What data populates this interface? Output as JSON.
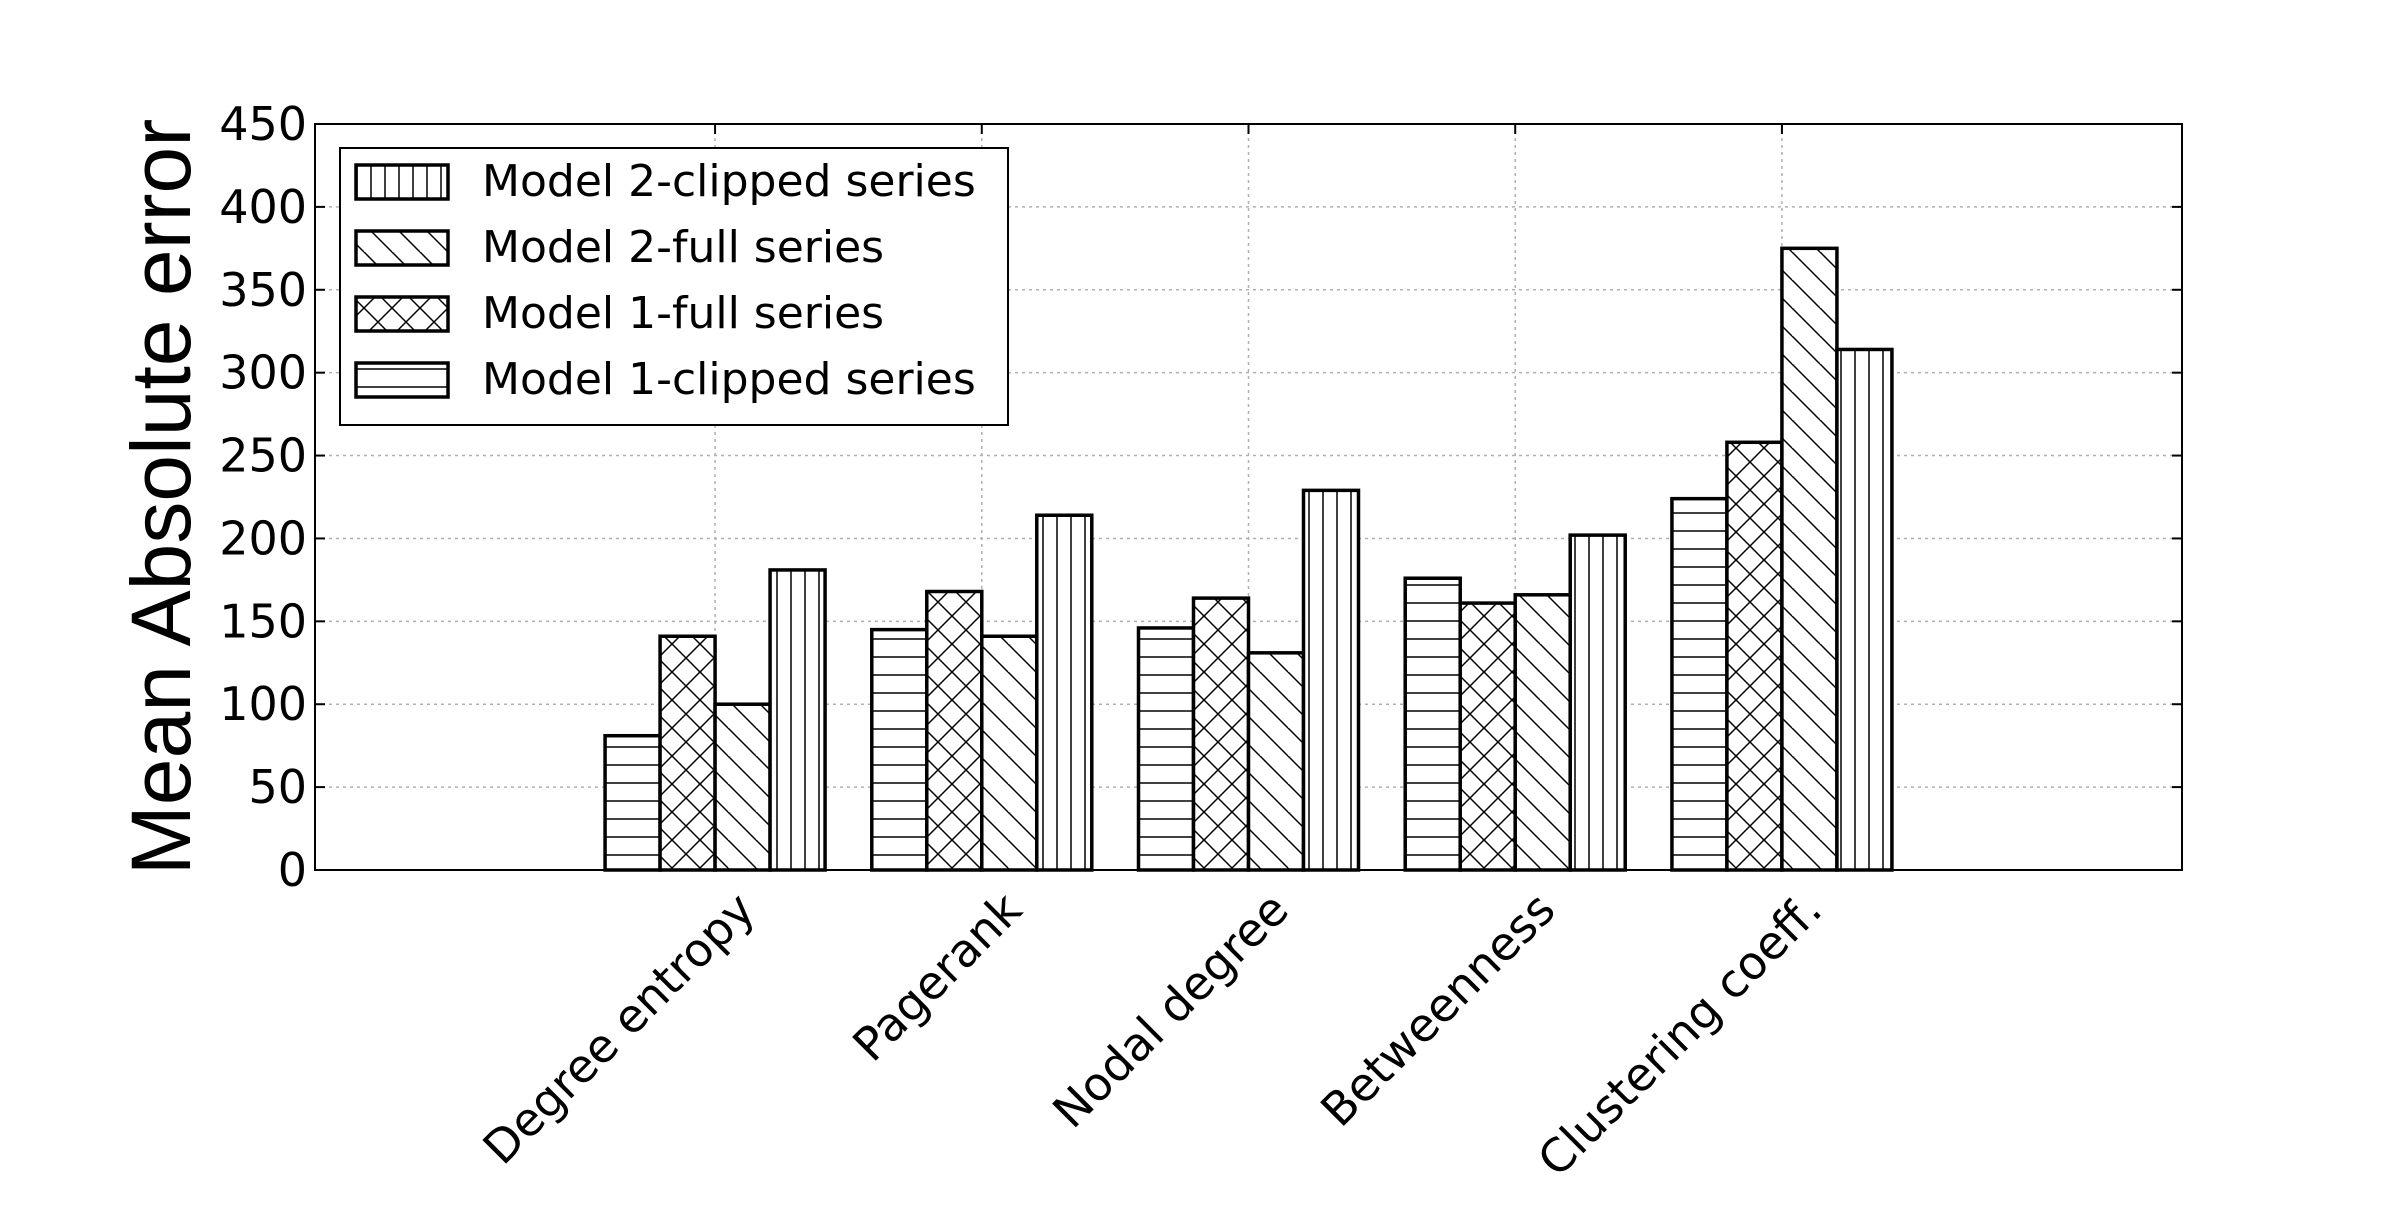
{
  "chart_data": {
    "type": "bar",
    "title": "",
    "xlabel": "",
    "ylabel": "Mean Absolute error",
    "ylim": [
      0,
      450
    ],
    "yticks": [
      "0",
      "50",
      "100",
      "150",
      "200",
      "250",
      "300",
      "350",
      "400",
      "450"
    ],
    "grid": true,
    "legend_position": "top-left",
    "categories": [
      "Degree entropy",
      "Pagerank",
      "Nodal degree",
      "Betweenness",
      "Clustering coeff."
    ],
    "series": [
      {
        "name": "Model 1-clipped series",
        "pattern": "horizontal",
        "values": [
          81,
          145,
          146,
          176,
          224
        ]
      },
      {
        "name": "Model 1-full series",
        "pattern": "crosshatch",
        "values": [
          141,
          168,
          164,
          161,
          258
        ]
      },
      {
        "name": "Model 2-full series",
        "pattern": "diagonal",
        "values": [
          100,
          141,
          131,
          166,
          375
        ]
      },
      {
        "name": "Model 2-clipped series",
        "pattern": "vertical",
        "values": [
          181,
          214,
          229,
          202,
          314
        ]
      }
    ],
    "legend_order": [
      "Model 2-clipped series",
      "Model 2-full series",
      "Model 1-full series",
      "Model 1-clipped series"
    ],
    "colors": {
      "bar_fill": "#ffffff",
      "bar_edge": "#000000",
      "grid": "#b0b0b0"
    }
  }
}
